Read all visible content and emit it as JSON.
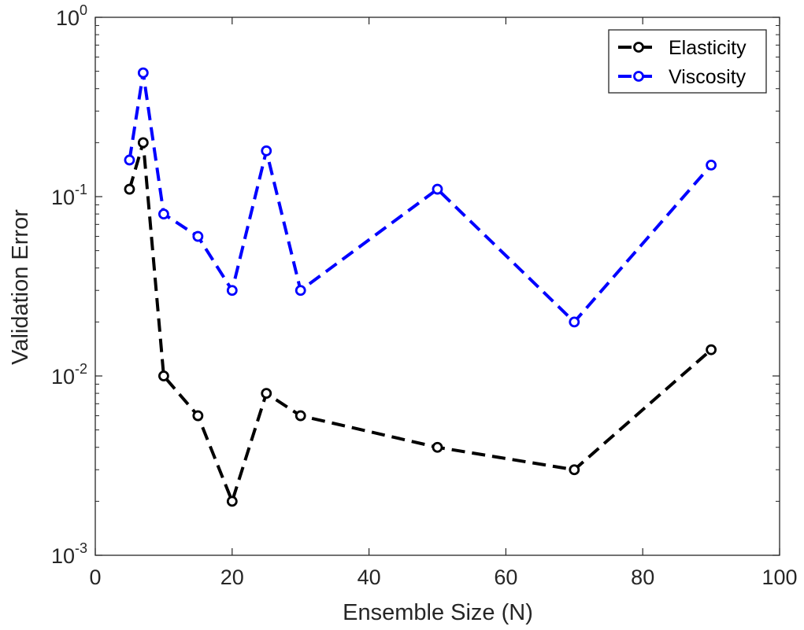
{
  "chart_data": {
    "type": "line",
    "title": "",
    "xlabel": "Ensemble Size (N)",
    "ylabel": "Validation Error",
    "xlim": [
      0,
      100
    ],
    "ylim": [
      0.001,
      1
    ],
    "yscale": "log",
    "grid": false,
    "legend_position": "top-right",
    "x_ticks": [
      0,
      20,
      40,
      60,
      80,
      100
    ],
    "y_ticks": [
      {
        "value": 1,
        "base": "10",
        "exp": "0"
      },
      {
        "value": 0.1,
        "base": "10",
        "exp": "-1"
      },
      {
        "value": 0.01,
        "base": "10",
        "exp": "-2"
      },
      {
        "value": 0.001,
        "base": "10",
        "exp": "-3"
      }
    ],
    "x": [
      5,
      7,
      10,
      15,
      20,
      25,
      30,
      50,
      70,
      90
    ],
    "series": [
      {
        "name": "Elasticity",
        "color": "#000000",
        "values": [
          0.11,
          0.2,
          0.01,
          0.006,
          0.002,
          0.008,
          0.006,
          0.004,
          0.003,
          0.014
        ]
      },
      {
        "name": "Viscosity",
        "color": "#0000ff",
        "values": [
          0.16,
          0.49,
          0.08,
          0.06,
          0.03,
          0.18,
          0.03,
          0.11,
          0.02,
          0.15
        ]
      }
    ]
  }
}
